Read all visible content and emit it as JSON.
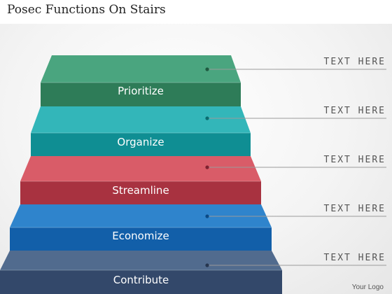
{
  "title": "Posec Functions On Stairs",
  "steps": [
    {
      "label": "Prioritize",
      "top": "#4aa57f",
      "front": "#2e7c58",
      "dot": "#1f5a40"
    },
    {
      "label": "Organize",
      "top": "#33b6b9",
      "front": "#0f8e93",
      "dot": "#0a6c70"
    },
    {
      "label": "Streamline",
      "top": "#d95c68",
      "front": "#a83240",
      "dot": "#7e2230"
    },
    {
      "label": "Economize",
      "top": "#2f84cc",
      "front": "#125fa9",
      "dot": "#0b4a86"
    },
    {
      "label": "Contribute",
      "top": "#516b8e",
      "front": "#33486a",
      "dot": "#26364f"
    }
  ],
  "callouts": [
    "TEXT HERE",
    "TEXT HERE",
    "TEXT HERE",
    "TEXT HERE",
    "TEXT HERE"
  ],
  "logo": "Your Logo"
}
